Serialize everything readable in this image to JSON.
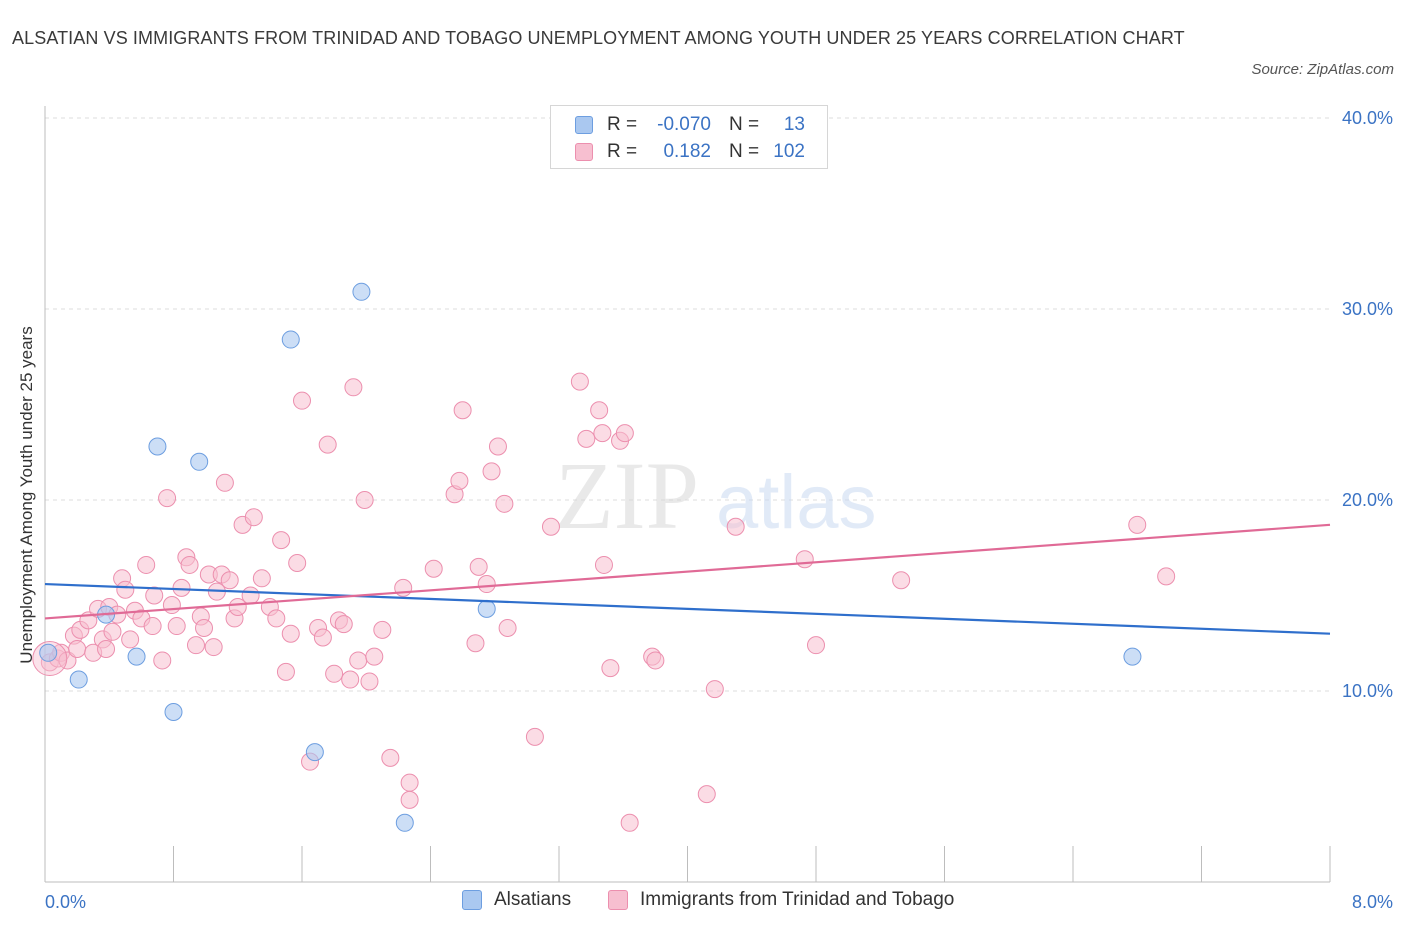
{
  "header": {
    "title": "ALSATIAN VS IMMIGRANTS FROM TRINIDAD AND TOBAGO UNEMPLOYMENT AMONG YOUTH UNDER 25 YEARS CORRELATION CHART",
    "source": "Source: ZipAtlas.com"
  },
  "legend": {
    "series": [
      {
        "r_label": "R =",
        "r_value": "-0.070",
        "n_label": "N =",
        "n_value": "13"
      },
      {
        "r_label": "R =",
        "r_value": "0.182",
        "n_label": "N =",
        "n_value": "102"
      }
    ],
    "bottom": [
      "Alsatians",
      "Immigrants from Trinidad and Tobago"
    ]
  },
  "colors": {
    "blue_fill": "#aac8f0",
    "blue_stroke": "#6d9ee0",
    "blue_line": "#2f6fcc",
    "pink_fill": "#f7bfd0",
    "pink_stroke": "#ec8fae",
    "pink_line": "#e06a96",
    "grid": "#dcdcdc",
    "axis_text": "#3b73c4"
  },
  "watermark": {
    "zip": "ZIP",
    "atlas": "atlas"
  },
  "chart_data": {
    "type": "scatter",
    "title": "ALSATIAN VS IMMIGRANTS FROM TRINIDAD AND TOBAGO UNEMPLOYMENT AMONG YOUTH UNDER 25 YEARS CORRELATION CHART",
    "xlabel": "",
    "ylabel": "Unemployment Among Youth under 25 years",
    "xlim": [
      0,
      8
    ],
    "ylim": [
      0,
      40
    ],
    "x_tick_labels": [
      "0.0%",
      "8.0%"
    ],
    "y_ticks": [
      10,
      20,
      30,
      40
    ],
    "y_tick_labels": [
      "10.0%",
      "20.0%",
      "30.0%",
      "40.0%"
    ],
    "grid": true,
    "series": [
      {
        "name": "Alsatians",
        "r": -0.07,
        "n": 13,
        "trend": {
          "x": [
            0,
            8
          ],
          "y": [
            15.6,
            13.0
          ]
        },
        "points": [
          [
            0.02,
            12.0
          ],
          [
            0.21,
            10.6
          ],
          [
            0.38,
            14.0
          ],
          [
            0.57,
            11.8
          ],
          [
            0.7,
            22.8
          ],
          [
            0.8,
            8.9
          ],
          [
            0.96,
            22.0
          ],
          [
            1.53,
            28.4
          ],
          [
            1.68,
            6.8
          ],
          [
            1.97,
            30.9
          ],
          [
            2.24,
            3.1
          ],
          [
            2.75,
            14.3
          ],
          [
            6.77,
            11.8
          ]
        ]
      },
      {
        "name": "Immigrants from Trinidad and Tobago",
        "r": 0.182,
        "n": 102,
        "trend": {
          "x": [
            0,
            8
          ],
          "y": [
            13.8,
            18.7
          ]
        },
        "points": [
          [
            0.03,
            11.5
          ],
          [
            0.08,
            11.7
          ],
          [
            0.1,
            12.0
          ],
          [
            0.14,
            11.6
          ],
          [
            0.18,
            12.9
          ],
          [
            0.2,
            12.2
          ],
          [
            0.22,
            13.2
          ],
          [
            0.27,
            13.7
          ],
          [
            0.3,
            12.0
          ],
          [
            0.33,
            14.3
          ],
          [
            0.36,
            12.7
          ],
          [
            0.38,
            12.2
          ],
          [
            0.4,
            14.4
          ],
          [
            0.42,
            13.1
          ],
          [
            0.45,
            14.0
          ],
          [
            0.48,
            15.9
          ],
          [
            0.5,
            15.3
          ],
          [
            0.53,
            12.7
          ],
          [
            0.56,
            14.2
          ],
          [
            0.6,
            13.8
          ],
          [
            0.63,
            16.6
          ],
          [
            0.67,
            13.4
          ],
          [
            0.68,
            15.0
          ],
          [
            0.73,
            11.6
          ],
          [
            0.76,
            20.1
          ],
          [
            0.79,
            14.5
          ],
          [
            0.82,
            13.4
          ],
          [
            0.85,
            15.4
          ],
          [
            0.88,
            17.0
          ],
          [
            0.9,
            16.6
          ],
          [
            0.94,
            12.4
          ],
          [
            0.97,
            13.9
          ],
          [
            0.99,
            13.3
          ],
          [
            1.02,
            16.1
          ],
          [
            1.05,
            12.3
          ],
          [
            1.07,
            15.2
          ],
          [
            1.1,
            16.1
          ],
          [
            1.12,
            20.9
          ],
          [
            1.15,
            15.8
          ],
          [
            1.18,
            13.8
          ],
          [
            1.2,
            14.4
          ],
          [
            1.23,
            18.7
          ],
          [
            1.28,
            15.0
          ],
          [
            1.3,
            19.1
          ],
          [
            1.35,
            15.9
          ],
          [
            1.4,
            14.4
          ],
          [
            1.44,
            13.8
          ],
          [
            1.47,
            17.9
          ],
          [
            1.5,
            11.0
          ],
          [
            1.53,
            13.0
          ],
          [
            1.57,
            16.7
          ],
          [
            1.6,
            25.2
          ],
          [
            1.65,
            6.3
          ],
          [
            1.7,
            13.3
          ],
          [
            1.73,
            12.8
          ],
          [
            1.76,
            22.9
          ],
          [
            1.8,
            10.9
          ],
          [
            1.83,
            13.7
          ],
          [
            1.86,
            13.5
          ],
          [
            1.9,
            10.6
          ],
          [
            1.92,
            25.9
          ],
          [
            1.95,
            11.6
          ],
          [
            1.99,
            20.0
          ],
          [
            2.02,
            10.5
          ],
          [
            2.05,
            11.8
          ],
          [
            2.1,
            13.2
          ],
          [
            2.15,
            6.5
          ],
          [
            2.23,
            15.4
          ],
          [
            2.27,
            5.2
          ],
          [
            2.27,
            4.3
          ],
          [
            2.42,
            16.4
          ],
          [
            2.55,
            20.3
          ],
          [
            2.58,
            21.0
          ],
          [
            2.6,
            24.7
          ],
          [
            2.68,
            12.5
          ],
          [
            2.7,
            16.5
          ],
          [
            2.75,
            15.6
          ],
          [
            2.78,
            21.5
          ],
          [
            2.82,
            22.8
          ],
          [
            2.86,
            19.8
          ],
          [
            2.88,
            13.3
          ],
          [
            3.05,
            7.6
          ],
          [
            3.15,
            18.6
          ],
          [
            3.33,
            26.2
          ],
          [
            3.37,
            23.2
          ],
          [
            3.45,
            24.7
          ],
          [
            3.47,
            23.5
          ],
          [
            3.48,
            16.6
          ],
          [
            3.52,
            11.2
          ],
          [
            3.58,
            23.1
          ],
          [
            3.61,
            23.5
          ],
          [
            3.64,
            3.1
          ],
          [
            3.78,
            11.8
          ],
          [
            3.8,
            11.6
          ],
          [
            4.12,
            4.6
          ],
          [
            4.17,
            10.1
          ],
          [
            4.3,
            18.6
          ],
          [
            4.73,
            16.9
          ],
          [
            4.8,
            12.4
          ],
          [
            5.33,
            15.8
          ],
          [
            6.8,
            18.7
          ],
          [
            6.98,
            16.0
          ]
        ]
      }
    ]
  }
}
